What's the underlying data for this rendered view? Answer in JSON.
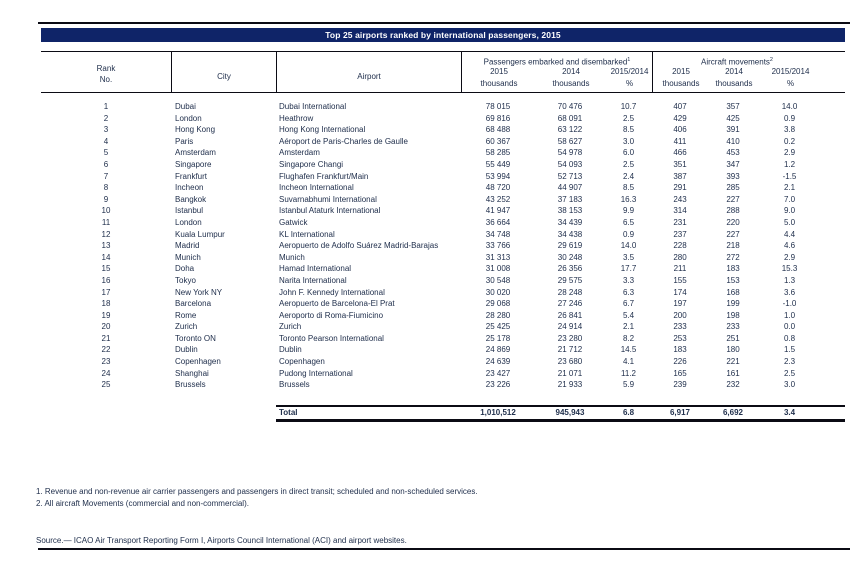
{
  "title": "Top 25 airports ranked by international passengers, 2015",
  "colors": {
    "title_bar": "#0f2468",
    "text": "#21304d"
  },
  "table": {
    "col_headers": {
      "rank_line1": "Rank",
      "rank_line2": "No.",
      "city": "City",
      "airport": "Airport",
      "passengers_group": "Passengers embarked and disembarked",
      "passengers_sup": "1",
      "aircraft_group": "Aircraft movements",
      "aircraft_sup": "2",
      "year_2015": "2015",
      "year_2014": "2014",
      "ratio": "2015/2014",
      "thousands": "thousands",
      "percent": "%"
    },
    "rows": [
      [
        "1",
        "Dubai",
        "Dubai International",
        "78 015",
        "70 476",
        "10.7",
        "407",
        "357",
        "14.0"
      ],
      [
        "2",
        "London",
        "Heathrow",
        "69 816",
        "68 091",
        "2.5",
        "429",
        "425",
        "0.9"
      ],
      [
        "3",
        "Hong Kong",
        "Hong Kong International",
        "68 488",
        "63 122",
        "8.5",
        "406",
        "391",
        "3.8"
      ],
      [
        "4",
        "Paris",
        "Aéroport de Paris-Charles de Gaulle",
        "60 367",
        "58 627",
        "3.0",
        "411",
        "410",
        "0.2"
      ],
      [
        "5",
        "Amsterdam",
        "Amsterdam",
        "58 285",
        "54 978",
        "6.0",
        "466",
        "453",
        "2.9"
      ],
      [
        "6",
        "Singapore",
        "Singapore Changi",
        "55 449",
        "54 093",
        "2.5",
        "351",
        "347",
        "1.2"
      ],
      [
        "7",
        "Frankfurt",
        "Flughafen Frankfurt/Main",
        "53 994",
        "52 713",
        "2.4",
        "387",
        "393",
        "-1.5"
      ],
      [
        "8",
        "Incheon",
        "Incheon International",
        "48 720",
        "44 907",
        "8.5",
        "291",
        "285",
        "2.1"
      ],
      [
        "9",
        "Bangkok",
        "Suvarnabhumi International",
        "43 252",
        "37 183",
        "16.3",
        "243",
        "227",
        "7.0"
      ],
      [
        "10",
        "Istanbul",
        "Istanbul Ataturk International",
        "41 947",
        "38 153",
        "9.9",
        "314",
        "288",
        "9.0"
      ],
      [
        "11",
        "London",
        "Gatwick",
        "36 664",
        "34 439",
        "6.5",
        "231",
        "220",
        "5.0"
      ],
      [
        "12",
        "Kuala Lumpur",
        "KL International",
        "34 748",
        "34 438",
        "0.9",
        "237",
        "227",
        "4.4"
      ],
      [
        "13",
        "Madrid",
        "Aeropuerto de Adolfo Suárez Madrid-Barajas",
        "33 766",
        "29 619",
        "14.0",
        "228",
        "218",
        "4.6"
      ],
      [
        "14",
        "Munich",
        "Munich",
        "31 313",
        "30 248",
        "3.5",
        "280",
        "272",
        "2.9"
      ],
      [
        "15",
        "Doha",
        "Hamad International",
        "31 008",
        "26 356",
        "17.7",
        "211",
        "183",
        "15.3"
      ],
      [
        "16",
        "Tokyo",
        "Narita International",
        "30 548",
        "29 575",
        "3.3",
        "155",
        "153",
        "1.3"
      ],
      [
        "17",
        "New York NY",
        "John F. Kennedy International",
        "30 020",
        "28 248",
        "6.3",
        "174",
        "168",
        "3.6"
      ],
      [
        "18",
        "Barcelona",
        "Aeropuerto de Barcelona-El Prat",
        "29 068",
        "27 246",
        "6.7",
        "197",
        "199",
        "-1.0"
      ],
      [
        "19",
        "Rome",
        "Aeroporto di Roma-Fiumicino",
        "28 280",
        "26 841",
        "5.4",
        "200",
        "198",
        "1.0"
      ],
      [
        "20",
        "Zurich",
        "Zurich",
        "25 425",
        "24 914",
        "2.1",
        "233",
        "233",
        "0.0"
      ],
      [
        "21",
        "Toronto ON",
        "Toronto Pearson International",
        "25 178",
        "23 280",
        "8.2",
        "253",
        "251",
        "0.8"
      ],
      [
        "22",
        "Dublin",
        "Dublin",
        "24 869",
        "21 712",
        "14.5",
        "183",
        "180",
        "1.5"
      ],
      [
        "23",
        "Copenhagen",
        "Copenhagen",
        "24 639",
        "23 680",
        "4.1",
        "226",
        "221",
        "2.3"
      ],
      [
        "24",
        "Shanghai",
        "Pudong International",
        "23 427",
        "21 071",
        "11.2",
        "165",
        "161",
        "2.5"
      ],
      [
        "25",
        "Brussels",
        "Brussels",
        "23 226",
        "21 933",
        "5.9",
        "239",
        "232",
        "3.0"
      ]
    ],
    "total_label": "Total",
    "total": [
      "1,010,512",
      "945,943",
      "6.8",
      "6,917",
      "6,692",
      "3.4"
    ]
  },
  "footnotes": [
    "1. Revenue and non-revenue air carrier passengers and passengers in direct transit; scheduled and non-scheduled services.",
    "2. All aircraft Movements (commercial and non-commercial)."
  ],
  "source": "Source.— ICAO Air Transport Reporting Form I, Airports Council International (ACI) and airport websites."
}
